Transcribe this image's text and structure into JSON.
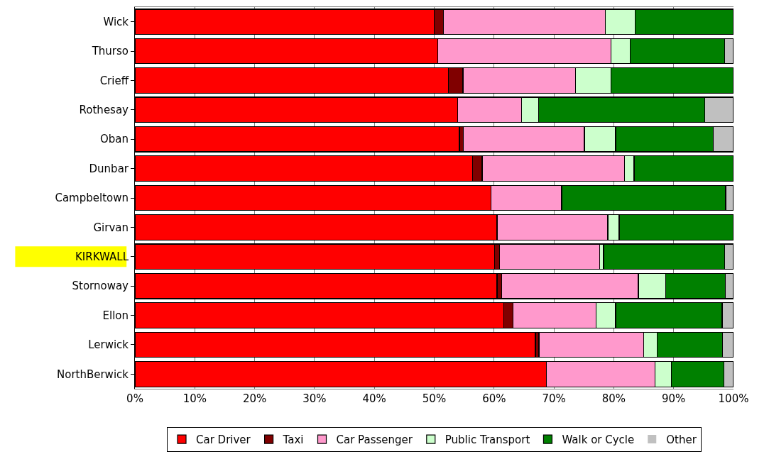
{
  "chart_data": {
    "type": "bar",
    "orientation": "horizontal",
    "stacked": true,
    "categories": [
      "Wick",
      "Thurso",
      "Crieff",
      "Rothesay",
      "Oban",
      "Dunbar",
      "Campbeltown",
      "Girvan",
      "KIRKWALL",
      "Stornoway",
      "Ellon",
      "Lerwick",
      "NorthBerwick"
    ],
    "series": [
      {
        "name": "Car Driver",
        "color": "#ff0000",
        "values": [
          50.0,
          50.6,
          52.4,
          53.9,
          54.2,
          56.4,
          59.5,
          60.5,
          60.1,
          60.5,
          61.6,
          66.9,
          68.7
        ]
      },
      {
        "name": "Taxi",
        "color": "#800000",
        "values": [
          1.5,
          0,
          2.4,
          0,
          0.7,
          1.6,
          0,
          0,
          0.8,
          0.8,
          1.6,
          0.6,
          0
        ]
      },
      {
        "name": "Car Passenger",
        "color": "#ff99cc",
        "values": [
          27.1,
          28.9,
          18.8,
          10.7,
          20.2,
          23.8,
          11.8,
          18.5,
          16.7,
          22.8,
          13.8,
          17.5,
          18.2
        ]
      },
      {
        "name": "Public Transport",
        "color": "#ccffcc",
        "values": [
          5.0,
          3.2,
          5.9,
          2.8,
          5.2,
          1.6,
          0,
          1.9,
          0.7,
          4.6,
          3.3,
          2.2,
          2.7
        ]
      },
      {
        "name": "Walk or Cycle",
        "color": "#008000",
        "values": [
          16.4,
          15.8,
          20.5,
          27.8,
          16.3,
          16.6,
          27.4,
          19.1,
          20.2,
          9.9,
          17.8,
          11.0,
          8.8
        ]
      },
      {
        "name": "Other",
        "color": "#c0c0c0",
        "values": [
          0,
          1.5,
          0,
          4.8,
          3.4,
          0,
          1.3,
          0,
          1.5,
          1.4,
          1.9,
          1.8,
          1.6
        ]
      }
    ],
    "xlim": [
      0,
      100
    ],
    "xticks": [
      {
        "value": 0,
        "label": "0%"
      },
      {
        "value": 10,
        "label": "10%"
      },
      {
        "value": 20,
        "label": "20%"
      },
      {
        "value": 30,
        "label": "30%"
      },
      {
        "value": 40,
        "label": "40%"
      },
      {
        "value": 50,
        "label": "50%"
      },
      {
        "value": 60,
        "label": "60%"
      },
      {
        "value": 70,
        "label": "70%"
      },
      {
        "value": 80,
        "label": "80%"
      },
      {
        "value": 90,
        "label": "90%"
      },
      {
        "value": 100,
        "label": "100%"
      }
    ],
    "grid": "x",
    "legend": "bottom"
  }
}
